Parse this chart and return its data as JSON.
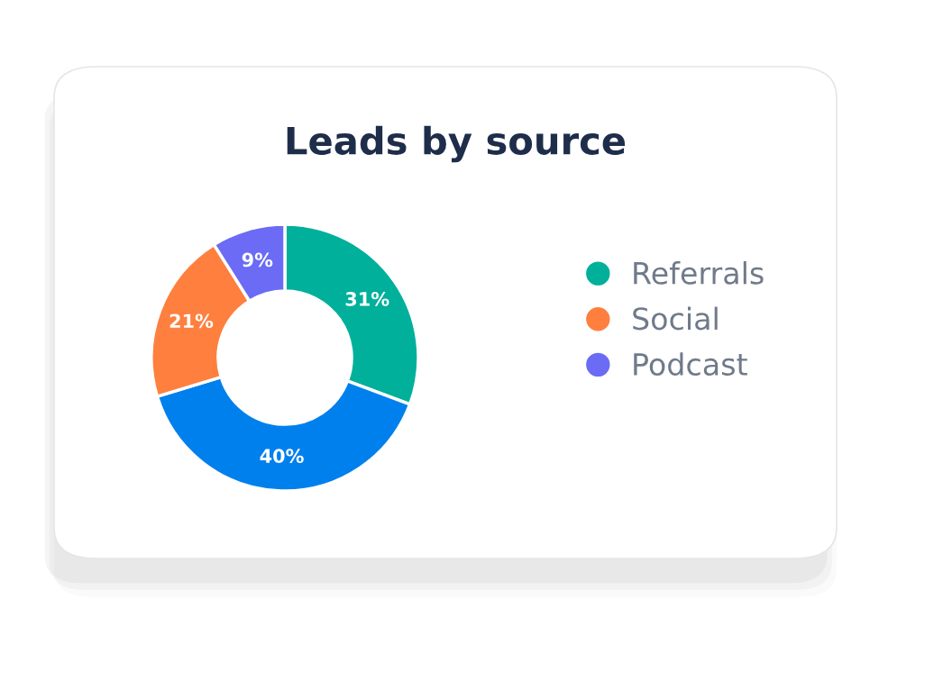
{
  "chart_data": {
    "type": "donut",
    "title": "Leads by source",
    "categories": [
      "Referrals",
      null,
      "Social",
      "Podcast"
    ],
    "values": [
      31,
      40,
      21,
      9
    ],
    "colors": [
      "#00b09b",
      "#0080ed",
      "#ff7f3f",
      "#6b6bf5"
    ],
    "value_labels": [
      "31%",
      "40%",
      "21%",
      "9%"
    ],
    "legend": "right"
  }
}
